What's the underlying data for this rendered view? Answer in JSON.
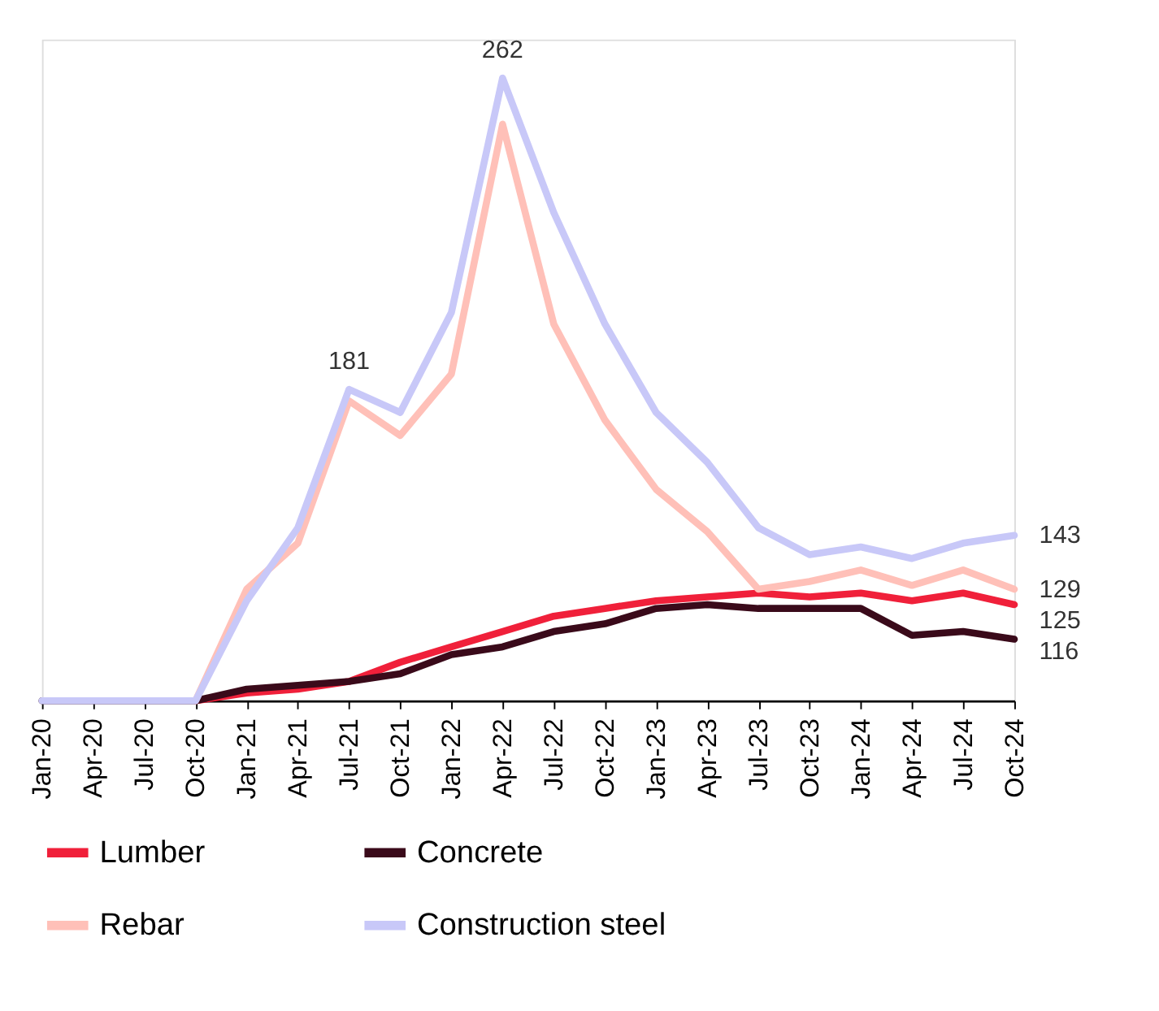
{
  "chart_data": {
    "type": "line",
    "categories": [
      "Jan-20",
      "Apr-20",
      "Jul-20",
      "Oct-20",
      "Jan-21",
      "Apr-21",
      "Jul-21",
      "Oct-21",
      "Jan-22",
      "Apr-22",
      "Jul-22",
      "Oct-22",
      "Jan-23",
      "Apr-23",
      "Jul-23",
      "Oct-23",
      "Jan-24",
      "Apr-24",
      "Jul-24",
      "Oct-24"
    ],
    "ylim": [
      100,
      272
    ],
    "tick_labels": "x",
    "grid": false,
    "legend": "bottom",
    "line_style": "solid",
    "marker": "none",
    "series": [
      {
        "name": "Lumber",
        "color": "#f0203a",
        "values": [
          null,
          null,
          null,
          100,
          102,
          103,
          105,
          110,
          114,
          118,
          122,
          124,
          126,
          127,
          128,
          127,
          128,
          126,
          128,
          125
        ],
        "value_labels": [
          null,
          null,
          null,
          null,
          null,
          null,
          null,
          null,
          null,
          null,
          null,
          null,
          null,
          null,
          null,
          null,
          null,
          null,
          null,
          "125"
        ]
      },
      {
        "name": "Concrete",
        "color": "#3a0a1a",
        "values": [
          100,
          100,
          100,
          100,
          103,
          104,
          105,
          107,
          112,
          114,
          118,
          120,
          124,
          125,
          124,
          124,
          124,
          117,
          118,
          116
        ],
        "value_labels": [
          null,
          null,
          null,
          null,
          null,
          null,
          null,
          null,
          null,
          null,
          null,
          null,
          null,
          null,
          null,
          null,
          null,
          null,
          null,
          "116"
        ]
      },
      {
        "name": "Rebar",
        "color": "#ffc0b8",
        "values": [
          null,
          null,
          null,
          100,
          129,
          141,
          178,
          169,
          185,
          250,
          198,
          173,
          155,
          144,
          129,
          131,
          134,
          130,
          134,
          129
        ],
        "value_labels": [
          null,
          null,
          null,
          null,
          null,
          null,
          null,
          null,
          null,
          null,
          null,
          null,
          null,
          null,
          null,
          null,
          null,
          null,
          null,
          "129"
        ]
      },
      {
        "name": "Construction steel",
        "color": "#c8c8f8",
        "values": [
          100,
          100,
          100,
          100,
          126,
          145,
          181,
          175,
          201,
          262,
          227,
          198,
          175,
          162,
          145,
          138,
          140,
          137,
          141,
          143
        ],
        "value_labels": [
          null,
          null,
          null,
          null,
          null,
          null,
          "181",
          null,
          null,
          "262",
          null,
          null,
          null,
          null,
          null,
          null,
          null,
          null,
          null,
          "143"
        ]
      }
    ]
  }
}
